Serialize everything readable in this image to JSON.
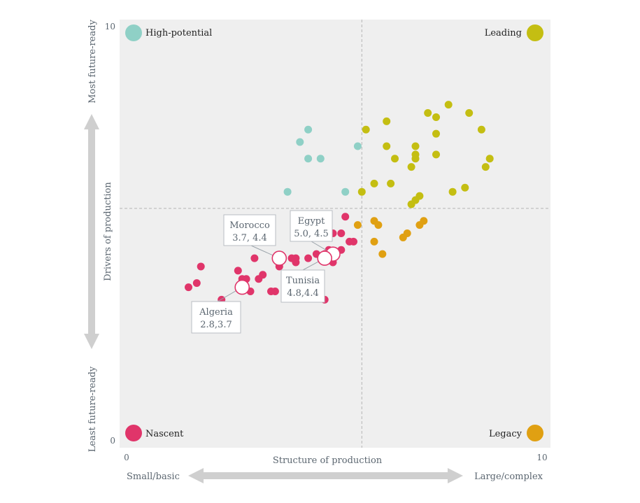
{
  "chart_data": {
    "type": "scatter",
    "xlabel": "Structure of production",
    "ylabel": "Drivers of production",
    "xlim": [
      0,
      10
    ],
    "ylim": [
      0,
      10
    ],
    "x_ticks": [
      "0",
      "10"
    ],
    "y_ticks": [
      "0",
      "10"
    ],
    "x_low_label": "Small/basic",
    "x_high_label": "Large/complex",
    "y_low_label": "Least future-ready",
    "y_high_label": "Most future-ready",
    "thresholds": {
      "x": 5.7,
      "y": 5.6
    },
    "grid": false,
    "quadrants": [
      {
        "name": "High-potential",
        "color": "#8fd0c6",
        "position": "top-left"
      },
      {
        "name": "Leading",
        "color": "#c4be12",
        "position": "top-right"
      },
      {
        "name": "Nascent",
        "color": "#e0356a",
        "position": "bottom-left"
      },
      {
        "name": "Legacy",
        "color": "#e0a012",
        "position": "bottom-right"
      }
    ],
    "series": [
      {
        "name": "High-potential",
        "color": "#8fd0c6",
        "points": [
          [
            4.4,
            7.5
          ],
          [
            4.2,
            7.2
          ],
          [
            4.4,
            6.8
          ],
          [
            4.7,
            6.8
          ],
          [
            5.6,
            7.1
          ],
          [
            3.9,
            6.0
          ],
          [
            5.3,
            6.0
          ]
        ]
      },
      {
        "name": "Leading",
        "color": "#c4be12",
        "points": [
          [
            7.8,
            8.1
          ],
          [
            8.3,
            7.9
          ],
          [
            8.6,
            7.5
          ],
          [
            7.3,
            7.9
          ],
          [
            7.5,
            7.8
          ],
          [
            6.3,
            7.7
          ],
          [
            5.8,
            7.5
          ],
          [
            7.5,
            7.4
          ],
          [
            6.3,
            7.1
          ],
          [
            7.0,
            7.1
          ],
          [
            7.5,
            6.9
          ],
          [
            7.0,
            6.9
          ],
          [
            6.5,
            6.8
          ],
          [
            7.0,
            6.8
          ],
          [
            8.8,
            6.8
          ],
          [
            8.7,
            6.6
          ],
          [
            6.9,
            6.6
          ],
          [
            6.0,
            6.2
          ],
          [
            6.4,
            6.2
          ],
          [
            8.2,
            6.1
          ],
          [
            7.9,
            6.0
          ],
          [
            5.7,
            6.0
          ],
          [
            7.1,
            5.9
          ],
          [
            7.0,
            5.8
          ],
          [
            6.9,
            5.7
          ]
        ]
      },
      {
        "name": "Legacy",
        "color": "#e0a012",
        "points": [
          [
            6.0,
            5.3
          ],
          [
            5.6,
            5.2
          ],
          [
            6.1,
            5.2
          ],
          [
            7.2,
            5.3
          ],
          [
            7.1,
            5.2
          ],
          [
            6.8,
            5.0
          ],
          [
            6.7,
            4.9
          ],
          [
            6.0,
            4.8
          ],
          [
            6.2,
            4.5
          ]
        ]
      },
      {
        "name": "Nascent",
        "color": "#e0356a",
        "points": [
          [
            5.3,
            5.4
          ],
          [
            5.0,
            5.0
          ],
          [
            5.2,
            5.0
          ],
          [
            4.8,
            4.9
          ],
          [
            5.4,
            4.8
          ],
          [
            5.5,
            4.8
          ],
          [
            4.9,
            4.6
          ],
          [
            5.2,
            4.6
          ],
          [
            4.8,
            4.5
          ],
          [
            4.6,
            4.5
          ],
          [
            4.4,
            4.4
          ],
          [
            4.8,
            4.4
          ],
          [
            5.0,
            4.3
          ],
          [
            3.1,
            4.4
          ],
          [
            4.0,
            4.4
          ],
          [
            4.1,
            4.4
          ],
          [
            4.1,
            4.3
          ],
          [
            3.7,
            4.2
          ],
          [
            1.8,
            4.2
          ],
          [
            2.7,
            4.1
          ],
          [
            3.3,
            4.0
          ],
          [
            2.8,
            3.9
          ],
          [
            2.9,
            3.9
          ],
          [
            3.2,
            3.9
          ],
          [
            1.7,
            3.8
          ],
          [
            1.5,
            3.7
          ],
          [
            3.0,
            3.6
          ],
          [
            3.6,
            3.6
          ],
          [
            3.5,
            3.6
          ],
          [
            2.3,
            3.4
          ],
          [
            4.8,
            3.4
          ]
        ]
      }
    ],
    "callouts": [
      {
        "name": "Morocco",
        "value": "3.7, 4.4",
        "x": 3.7,
        "y": 4.4
      },
      {
        "name": "Egypt",
        "value": "5.0, 4.5",
        "x": 5.0,
        "y": 4.5
      },
      {
        "name": "Tunisia",
        "value": "4.8,4.4",
        "x": 4.8,
        "y": 4.4
      },
      {
        "name": "Algeria",
        "value": "2.8,3.7",
        "x": 2.8,
        "y": 3.7
      }
    ]
  }
}
